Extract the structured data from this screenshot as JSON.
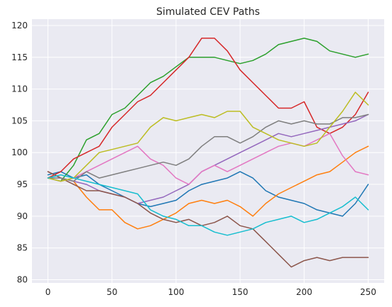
{
  "chart_data": {
    "type": "line",
    "title": "Simulated CEV Paths",
    "xlabel": "",
    "ylabel": "",
    "xlim": [
      -12.5,
      262.5
    ],
    "ylim": [
      79.5,
      121.0
    ],
    "xticks": [
      0,
      50,
      100,
      150,
      200,
      250
    ],
    "yticks": [
      80,
      85,
      90,
      95,
      100,
      105,
      110,
      115,
      120
    ],
    "grid": true,
    "legend": "none",
    "series": [
      {
        "color": "#1f77b4",
        "x": [
          0,
          10,
          20,
          30,
          40,
          50,
          60,
          70,
          80,
          90,
          100,
          110,
          120,
          130,
          140,
          150,
          160,
          170,
          180,
          190,
          200,
          210,
          220,
          230,
          240,
          250
        ],
        "y": [
          96.5,
          97,
          96,
          96.5,
          95,
          94,
          93,
          92,
          91.5,
          92,
          92.5,
          94,
          95,
          95.5,
          96,
          97,
          96,
          94,
          93,
          92.5,
          92,
          91,
          90.5,
          90,
          92,
          95
        ]
      },
      {
        "color": "#ff7f0e",
        "x": [
          0,
          10,
          20,
          30,
          40,
          50,
          60,
          70,
          80,
          90,
          100,
          110,
          120,
          130,
          140,
          150,
          160,
          170,
          180,
          190,
          200,
          210,
          220,
          230,
          240,
          250
        ],
        "y": [
          97,
          96,
          95.5,
          93,
          91,
          91,
          89,
          88,
          88.5,
          89.5,
          90.5,
          92,
          92.5,
          92,
          92.5,
          91.5,
          90,
          92,
          93.5,
          94.5,
          95.5,
          96.5,
          97,
          98.5,
          100,
          101
        ]
      },
      {
        "color": "#2ca02c",
        "x": [
          0,
          10,
          20,
          30,
          40,
          50,
          60,
          70,
          80,
          90,
          100,
          110,
          120,
          130,
          140,
          150,
          160,
          170,
          180,
          190,
          200,
          210,
          220,
          230,
          240,
          250
        ],
        "y": [
          96,
          95.5,
          98,
          102,
          103,
          106,
          107,
          109,
          111,
          112,
          113.5,
          115,
          115,
          115,
          114.5,
          114,
          114.5,
          115.5,
          117,
          117.5,
          118,
          117.5,
          116,
          115.5,
          115,
          115.5
        ]
      },
      {
        "color": "#d62728",
        "x": [
          0,
          10,
          20,
          30,
          40,
          50,
          60,
          70,
          80,
          90,
          100,
          110,
          120,
          130,
          140,
          150,
          160,
          170,
          180,
          190,
          200,
          210,
          220,
          230,
          240,
          250
        ],
        "y": [
          96,
          97,
          99,
          100,
          101,
          104,
          106,
          108,
          109,
          111,
          113,
          115,
          118,
          118,
          116,
          113,
          111,
          109,
          107,
          107,
          108,
          104,
          103,
          104,
          106,
          109.5
        ]
      },
      {
        "color": "#9467bd",
        "x": [
          0,
          10,
          20,
          30,
          40,
          50,
          60,
          70,
          80,
          90,
          100,
          110,
          120,
          130,
          140,
          150,
          160,
          170,
          180,
          190,
          200,
          210,
          220,
          230,
          240,
          250
        ],
        "y": [
          97,
          96,
          95.5,
          95,
          94,
          93.5,
          93,
          92,
          92.5,
          93,
          94,
          95,
          97,
          98,
          99,
          100,
          101,
          102,
          103,
          102.5,
          103,
          103.5,
          104,
          104.5,
          105,
          106
        ]
      },
      {
        "color": "#8c564b",
        "x": [
          0,
          10,
          20,
          30,
          40,
          50,
          60,
          70,
          80,
          90,
          100,
          110,
          120,
          130,
          140,
          150,
          160,
          170,
          180,
          190,
          200,
          210,
          220,
          230,
          240,
          250
        ],
        "y": [
          97,
          96,
          95,
          94,
          94,
          93.5,
          93,
          92,
          90.5,
          89.5,
          89,
          89.5,
          88.5,
          89,
          90,
          88.5,
          88,
          86,
          84,
          82,
          83,
          83.5,
          83,
          83.5,
          83.5,
          83.5
        ]
      },
      {
        "color": "#e377c2",
        "x": [
          0,
          10,
          20,
          30,
          40,
          50,
          60,
          70,
          80,
          90,
          100,
          110,
          120,
          130,
          140,
          150,
          160,
          170,
          180,
          190,
          200,
          210,
          220,
          230,
          240,
          250
        ],
        "y": [
          96,
          95.5,
          96,
          97,
          98,
          99,
          100,
          101,
          99,
          98,
          96,
          95,
          97,
          98,
          97,
          98,
          99,
          100,
          101,
          101.5,
          101,
          102,
          103,
          99.5,
          97,
          96.5
        ]
      },
      {
        "color": "#7f7f7f",
        "x": [
          0,
          10,
          20,
          30,
          40,
          50,
          60,
          70,
          80,
          90,
          100,
          110,
          120,
          130,
          140,
          150,
          160,
          170,
          180,
          190,
          200,
          210,
          220,
          230,
          240,
          250
        ],
        "y": [
          96,
          96,
          95.5,
          97,
          96,
          96.5,
          97,
          97.5,
          98,
          98.5,
          98,
          99,
          101,
          102.5,
          102.5,
          101.5,
          102.5,
          104,
          105,
          104.5,
          105,
          104.5,
          104.5,
          105.5,
          105.5,
          106
        ]
      },
      {
        "color": "#bcbd22",
        "x": [
          0,
          10,
          20,
          30,
          40,
          50,
          60,
          70,
          80,
          90,
          100,
          110,
          120,
          130,
          140,
          150,
          160,
          170,
          180,
          190,
          200,
          210,
          220,
          230,
          240,
          250
        ],
        "y": [
          96,
          95.5,
          96,
          98,
          100,
          100.5,
          101,
          101.5,
          104,
          105.5,
          105,
          105.5,
          106,
          105.5,
          106.5,
          106.5,
          104,
          103,
          102,
          101.5,
          101,
          101.5,
          104,
          106.5,
          109.5,
          107.5
        ]
      },
      {
        "color": "#17becf",
        "x": [
          0,
          10,
          20,
          30,
          40,
          50,
          60,
          70,
          80,
          90,
          100,
          110,
          120,
          130,
          140,
          150,
          160,
          170,
          180,
          190,
          200,
          210,
          220,
          230,
          240,
          250
        ],
        "y": [
          96,
          96.5,
          96,
          95.5,
          95,
          94.5,
          94,
          93.5,
          91,
          90,
          89.5,
          88.5,
          88.5,
          87.5,
          87,
          87.5,
          88,
          89,
          89.5,
          90,
          89,
          89.5,
          90.5,
          91.5,
          93,
          91
        ]
      }
    ]
  }
}
